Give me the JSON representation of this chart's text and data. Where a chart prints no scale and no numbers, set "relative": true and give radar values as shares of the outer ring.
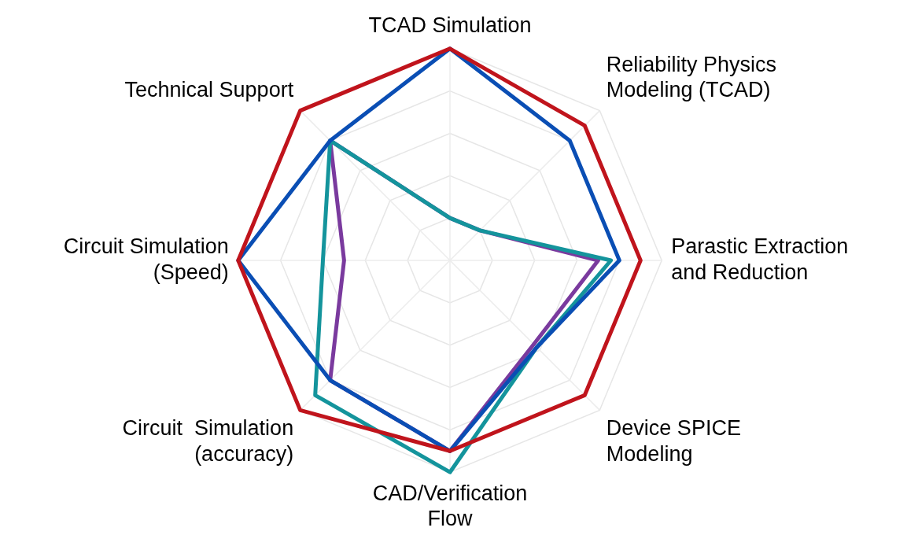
{
  "chart_data": {
    "type": "radar",
    "relative": true,
    "grid": true,
    "legend": false,
    "marker": "none",
    "categories": [
      "TCAD Simulation",
      "Reliability Physics\nModeling (TCAD)",
      "Parastic Extraction\nand Reduction",
      "Device SPICE\nModeling",
      "CAD/Verification\nFlow",
      "Circuit  Simulation\n(accuracy)",
      "Circuit Simulation\n(Speed)",
      "Technical Support"
    ],
    "series": [
      {
        "color": "#c0141c",
        "values": [
          1.0,
          0.9,
          0.9,
          0.9,
          0.9,
          1.0,
          1.0,
          1.0
        ]
      },
      {
        "color": "#0a4eb4",
        "values": [
          1.0,
          0.8,
          0.8,
          0.58,
          0.9,
          0.8,
          1.0,
          0.8
        ]
      },
      {
        "color": "#14949c",
        "values": [
          0.2,
          0.2,
          0.76,
          0.58,
          1.0,
          0.9,
          0.6,
          0.8
        ]
      },
      {
        "color": "#7a3a9e",
        "values": [
          0.2,
          0.2,
          0.7,
          0.56,
          0.9,
          0.8,
          0.5,
          0.8
        ]
      }
    ]
  }
}
